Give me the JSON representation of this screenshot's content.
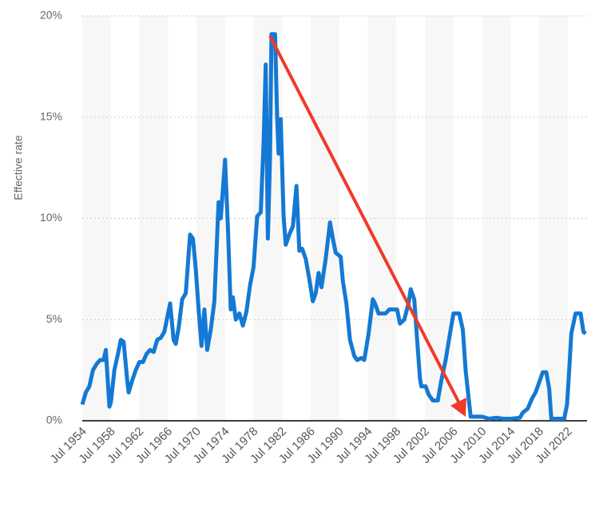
{
  "chart_data": {
    "type": "line",
    "y_label": "Effective rate",
    "color": "#1479d4",
    "x": [
      1954.5,
      1955,
      1955.5,
      1956,
      1956.5,
      1957,
      1957.5,
      1957.8,
      1958.3,
      1958.5,
      1959,
      1959.5,
      1959.9,
      1960.3,
      1960.8,
      1961,
      1961.5,
      1962,
      1962.5,
      1963,
      1963.5,
      1964,
      1964.5,
      1965,
      1965.5,
      1966,
      1966.8,
      1967.3,
      1967.6,
      1968,
      1968.5,
      1969,
      1969.6,
      1970,
      1970.4,
      1970.8,
      1971.2,
      1971.6,
      1972,
      1972.5,
      1973,
      1973.6,
      1973.9,
      1974.5,
      1974.9,
      1975.3,
      1975.6,
      1976,
      1976.5,
      1977,
      1977.5,
      1978,
      1978.5,
      1979,
      1979.5,
      1979.9,
      1980.2,
      1980.5,
      1980.8,
      1981,
      1981.5,
      1981.8,
      1982,
      1982.3,
      1982.7,
      1983,
      1983.5,
      1984,
      1984.5,
      1984.9,
      1985.3,
      1985.8,
      1986.3,
      1986.8,
      1987.2,
      1987.6,
      1988,
      1988.6,
      1989.2,
      1989.6,
      1990,
      1990.7,
      1991,
      1991.5,
      1992,
      1992.6,
      1993,
      1993.6,
      1994,
      1994.6,
      1995.2,
      1995.5,
      1996,
      1996.6,
      1997,
      1997.5,
      1998,
      1998.6,
      1999,
      1999.6,
      2000.2,
      2000.5,
      2001,
      2001.3,
      2001.8,
      2002,
      2002.6,
      2003,
      2003.6,
      2004.3,
      2004.8,
      2005.4,
      2006,
      2006.5,
      2007.3,
      2007.8,
      2008.2,
      2008.9,
      2009.5,
      2010.5,
      2011.5,
      2012.5,
      2013.5,
      2014.5,
      2015.8,
      2016.2,
      2016.9,
      2017.5,
      2018,
      2018.5,
      2019,
      2019.5,
      2019.9,
      2020.2,
      2021,
      2022,
      2022.4,
      2022.7,
      2023,
      2023.6,
      2024.3,
      2024.7,
      2025
    ],
    "values": [
      0.8,
      1.4,
      1.7,
      2.5,
      2.8,
      3.0,
      3.0,
      3.5,
      0.7,
      0.9,
      2.5,
      3.3,
      4.0,
      3.9,
      2.0,
      1.4,
      2.0,
      2.5,
      2.9,
      2.9,
      3.3,
      3.5,
      3.4,
      4.0,
      4.1,
      4.4,
      5.8,
      4.0,
      3.8,
      4.6,
      6.0,
      6.3,
      9.2,
      9.0,
      7.5,
      5.5,
      3.7,
      5.5,
      3.5,
      4.5,
      5.9,
      10.8,
      10.0,
      12.9,
      9.5,
      5.5,
      6.1,
      5.0,
      5.3,
      4.7,
      5.4,
      6.7,
      7.6,
      10.1,
      10.3,
      13.8,
      17.6,
      9.0,
      13.0,
      19.1,
      19.1,
      15.0,
      13.2,
      14.9,
      10.1,
      8.7,
      9.2,
      9.6,
      11.6,
      8.4,
      8.5,
      8.0,
      7.0,
      5.9,
      6.3,
      7.3,
      6.6,
      8.0,
      9.8,
      9.0,
      8.3,
      8.1,
      6.9,
      5.8,
      4.0,
      3.2,
      3.0,
      3.1,
      3.0,
      4.3,
      6.0,
      5.8,
      5.3,
      5.3,
      5.3,
      5.5,
      5.5,
      5.5,
      4.8,
      5.0,
      5.8,
      6.5,
      6.0,
      4.5,
      2.1,
      1.7,
      1.7,
      1.3,
      1.0,
      1.0,
      2.0,
      3.0,
      4.3,
      5.3,
      5.3,
      4.5,
      2.5,
      0.2,
      0.2,
      0.2,
      0.1,
      0.15,
      0.1,
      0.1,
      0.15,
      0.4,
      0.6,
      1.1,
      1.4,
      1.9,
      2.4,
      2.4,
      1.6,
      0.1,
      0.1,
      0.1,
      0.8,
      2.5,
      4.3,
      5.3,
      5.3,
      4.4,
      4.3
    ],
    "xlim": [
      1954.5,
      2025.2
    ],
    "xticks": [
      {
        "value": 1954.5,
        "label": "Jul 1954"
      },
      {
        "value": 1958.5,
        "label": "Jul 1958"
      },
      {
        "value": 1962.5,
        "label": "Jul 1962"
      },
      {
        "value": 1966.5,
        "label": "Jul 1966"
      },
      {
        "value": 1970.5,
        "label": "Jul 1970"
      },
      {
        "value": 1974.5,
        "label": "Jul 1974"
      },
      {
        "value": 1978.5,
        "label": "Jul 1978"
      },
      {
        "value": 1982.5,
        "label": "Jul 1982"
      },
      {
        "value": 1986.5,
        "label": "Jul 1986"
      },
      {
        "value": 1990.5,
        "label": "Jul 1990"
      },
      {
        "value": 1994.5,
        "label": "Jul 1994"
      },
      {
        "value": 1998.5,
        "label": "Jul 1998"
      },
      {
        "value": 2002.5,
        "label": "Jul 2002"
      },
      {
        "value": 2006.5,
        "label": "Jul 2006"
      },
      {
        "value": 2010.5,
        "label": "Jul 2010"
      },
      {
        "value": 2014.5,
        "label": "Jul 2014"
      },
      {
        "value": 2018.5,
        "label": "Jul 2018"
      },
      {
        "value": 2022.5,
        "label": "Jul 2022"
      }
    ],
    "ylim": [
      0,
      20
    ],
    "yticks": [
      {
        "value": 0,
        "label": "0%"
      },
      {
        "value": 5,
        "label": "5%"
      },
      {
        "value": 10,
        "label": "10%"
      },
      {
        "value": 15,
        "label": "15%"
      },
      {
        "value": 20,
        "label": "20%"
      }
    ],
    "grid": true
  }
}
